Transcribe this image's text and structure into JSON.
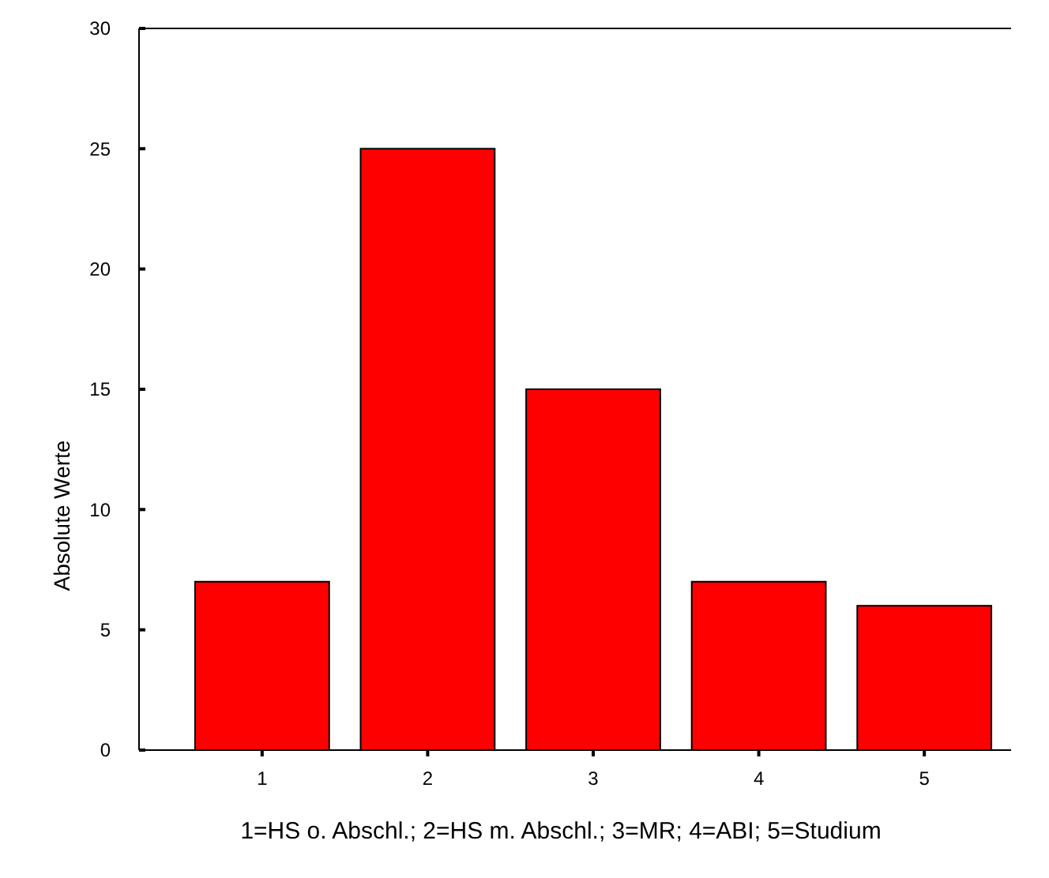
{
  "chart_data": {
    "type": "bar",
    "xlabel": "1=HS o. Abschl.; 2=HS m. Abschl.; 3=MR; 4=ABI; 5=Studium",
    "ylabel": "Absolute Werte",
    "categories": [
      "1",
      "2",
      "3",
      "4",
      "5"
    ],
    "values": [
      7,
      25,
      15,
      7,
      6
    ],
    "color": "#ff0000",
    "ylim": [
      0,
      30
    ],
    "yticks": [
      0,
      5,
      10,
      15,
      20,
      25,
      30
    ]
  }
}
